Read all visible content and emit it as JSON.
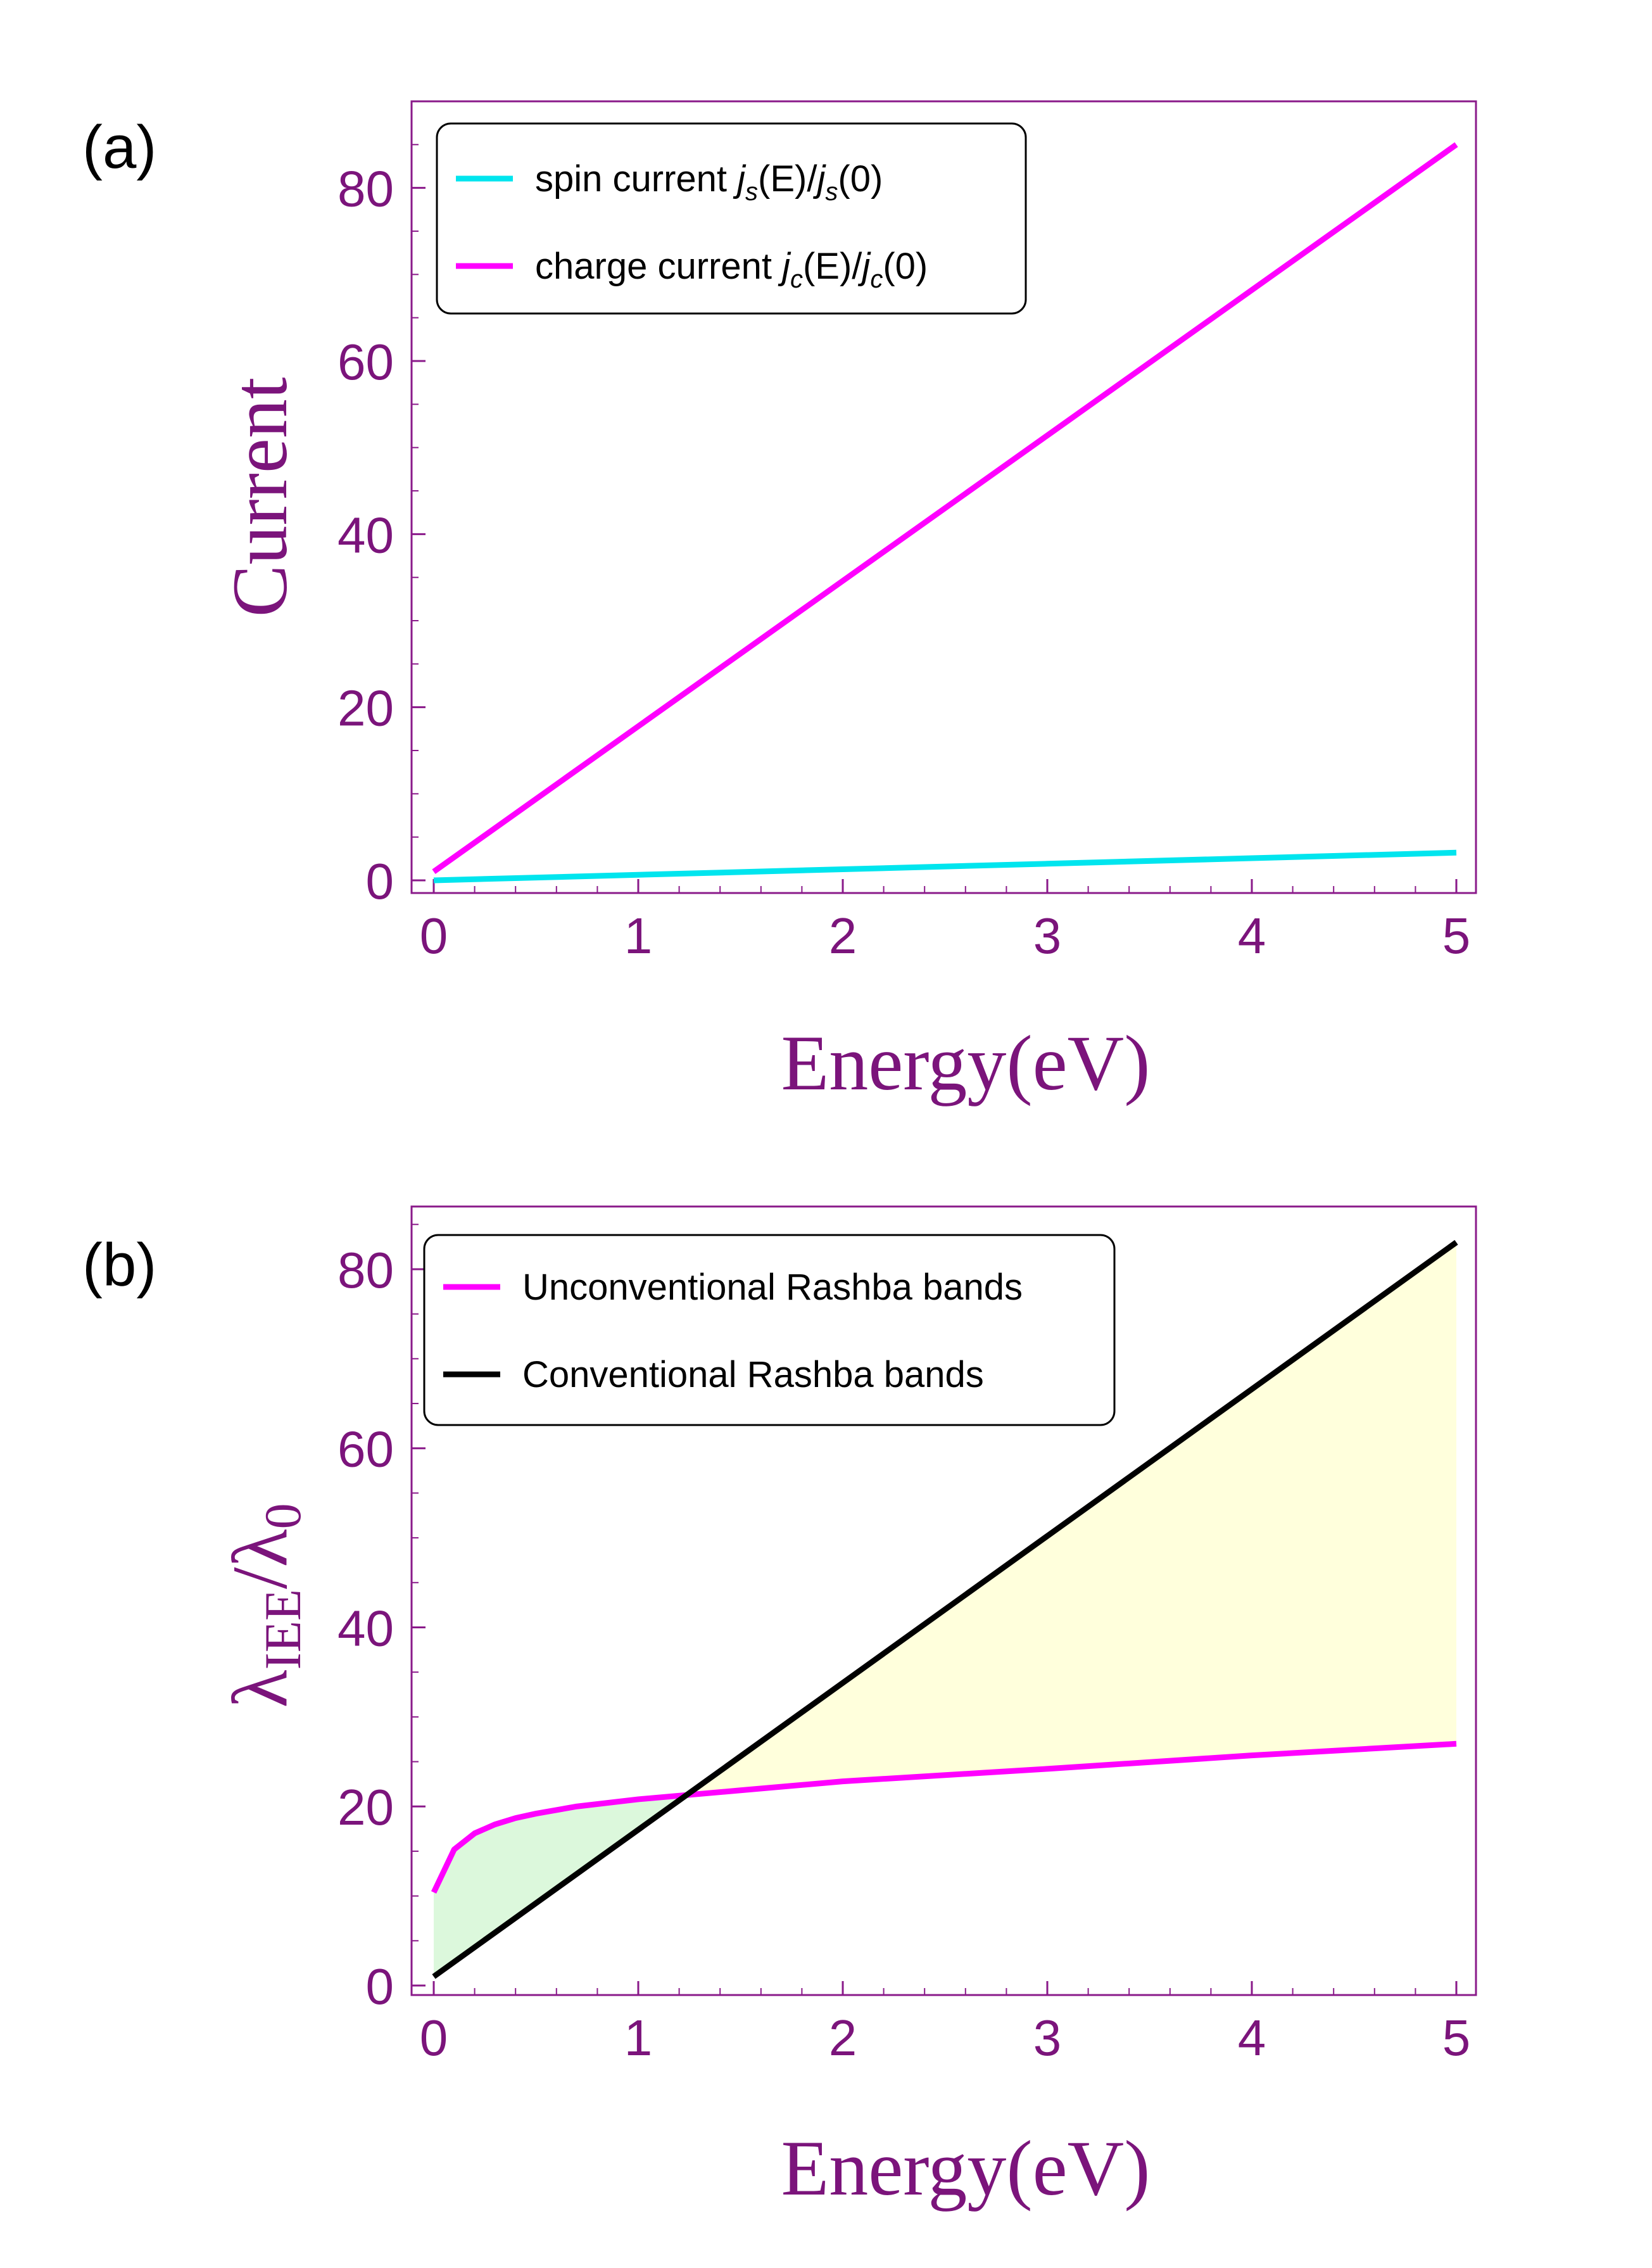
{
  "colors": {
    "axis": "#7b147b",
    "frame": "#8a1a8a",
    "cyan": "#00e5ee",
    "magenta": "#ff00ff",
    "black": "#000000",
    "fill_green": "#dcf8dc",
    "fill_yellow": "#ffffdc"
  },
  "chart_data": [
    {
      "id": "a",
      "type": "line",
      "panel_label": "(a)",
      "xlabel": "Energy(eV)",
      "ylabel": "Current",
      "xlim": [
        0,
        5
      ],
      "ylim": [
        0,
        90
      ],
      "xticks": [
        "0",
        "1",
        "2",
        "3",
        "4",
        "5"
      ],
      "yticks": [
        "0",
        "20",
        "40",
        "60",
        "80"
      ],
      "legend_position": "top-left",
      "series": [
        {
          "key": "spin",
          "name": "spin current j_s(E)/j_s(0)",
          "color": "#00e5ee",
          "legend": {
            "base": "spin current ",
            "parts": [
              "j",
              "s",
              "(E)/",
              "j",
              "s",
              "(0)"
            ]
          },
          "x": [
            0,
            1,
            2,
            3,
            4,
            5
          ],
          "y": [
            0.0,
            0.64,
            1.28,
            1.92,
            2.56,
            3.2
          ]
        },
        {
          "key": "charge",
          "name": "charge current j_c(E)/j_c(0)",
          "color": "#ff00ff",
          "legend": {
            "base": "charge current ",
            "parts": [
              "j",
              "c",
              "(E)/",
              "j",
              "c",
              "(0)"
            ]
          },
          "x": [
            0,
            1,
            2,
            3,
            4,
            5
          ],
          "y": [
            1,
            17.8,
            34.6,
            51.4,
            68.2,
            85
          ]
        }
      ]
    },
    {
      "id": "b",
      "type": "line",
      "panel_label": "(b)",
      "xlabel": "Energy(eV)",
      "ylabel": {
        "main": "λ",
        "sub": "IEE",
        "mid": "/λ",
        "sub2": "0"
      },
      "xlim": [
        0,
        5
      ],
      "ylim": [
        0,
        87
      ],
      "xticks": [
        "0",
        "1",
        "2",
        "3",
        "4",
        "5"
      ],
      "yticks": [
        "0",
        "20",
        "40",
        "60",
        "80"
      ],
      "legend_position": "top-left",
      "series": [
        {
          "key": "unconv",
          "name": "Unconventional Rashba bands",
          "color": "#ff00ff",
          "x": [
            0,
            0.1,
            0.2,
            0.3,
            0.4,
            0.5,
            0.7,
            1.0,
            1.5,
            2.0,
            3.0,
            4.0,
            5.0
          ],
          "y": [
            10.4,
            15.2,
            17.0,
            18.0,
            18.7,
            19.2,
            20.0,
            20.8,
            21.8,
            22.8,
            24.2,
            25.7,
            27.0
          ]
        },
        {
          "key": "conv",
          "name": "Conventional Rashba bands",
          "color": "#000000",
          "x": [
            0,
            5
          ],
          "y": [
            1,
            83
          ]
        }
      ]
    }
  ]
}
